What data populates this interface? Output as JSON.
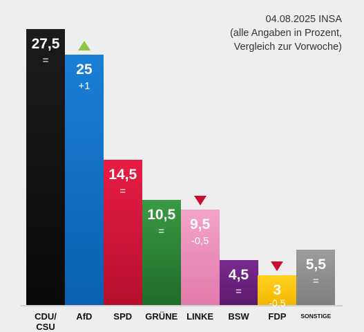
{
  "header": {
    "lines": [
      "04.08.2025 INSA",
      "(alle Angaben in Prozent,",
      "Vergleich zur Vorwoche)"
    ]
  },
  "chart_data": {
    "type": "bar",
    "date": "04.08.2025",
    "source": "INSA",
    "note": "(alle Angaben in Prozent, Vergleich zur Vorwoche)",
    "categories": [
      "CDU/\nCSU",
      "AfD",
      "SPD",
      "GRÜNE",
      "LINKE",
      "BSW",
      "FDP",
      "SONSTIGE"
    ],
    "values": [
      27.5,
      25,
      14.5,
      10.5,
      9.5,
      4.5,
      3,
      5.5
    ],
    "value_labels": [
      "27,5",
      "25",
      "14,5",
      "10,5",
      "9,5",
      "4,5",
      "3",
      "5,5"
    ],
    "change_labels": [
      "=",
      "+1",
      "=",
      "=",
      "-0,5",
      "=",
      "-0,5",
      "="
    ],
    "trend": [
      "none",
      "up",
      "none",
      "none",
      "down",
      "none",
      "down",
      "none"
    ],
    "colors": [
      [
        "#1c1c1c",
        "#0a0a0a"
      ],
      [
        "#1a7fd6",
        "#0a5fb0"
      ],
      [
        "#e81c43",
        "#b5102e"
      ],
      [
        "#3a9a45",
        "#1f6b2a"
      ],
      [
        "#f4a3c8",
        "#e07aab"
      ],
      [
        "#7a2a8f",
        "#5a1a6e"
      ],
      [
        "#ffd21f",
        "#f2b700"
      ],
      [
        "#9c9c9c",
        "#7f7f7f"
      ]
    ],
    "ylim": [
      0,
      30
    ]
  }
}
